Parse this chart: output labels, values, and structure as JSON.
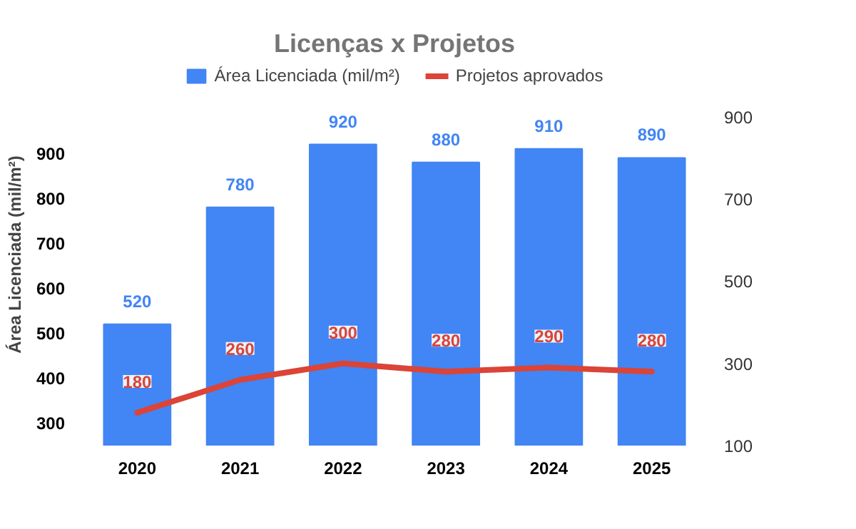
{
  "chart_data": {
    "type": "bar",
    "title": "Licenças x Projetos",
    "categories": [
      "2020",
      "2021",
      "2022",
      "2023",
      "2024",
      "2025"
    ],
    "ylabel": "Área Licenciada (mil/m²)",
    "ylim": [
      250,
      1100
    ],
    "yticks": [
      300,
      400,
      500,
      600,
      700,
      800,
      900
    ],
    "y2lim": [
      100,
      1030
    ],
    "y2ticks": [
      100,
      300,
      500,
      700,
      900
    ],
    "series": [
      {
        "name": "Área Licenciada (mil/m²)",
        "type": "bar",
        "color": "#4285f4",
        "values": [
          520,
          780,
          920,
          880,
          910,
          890
        ]
      },
      {
        "name": "Projetos aprovados",
        "type": "line",
        "axis": "y2",
        "color": "#db4437",
        "values": [
          180,
          260,
          300,
          280,
          290,
          280
        ]
      }
    ],
    "data_labels": true,
    "legend": "top",
    "grid": false
  }
}
